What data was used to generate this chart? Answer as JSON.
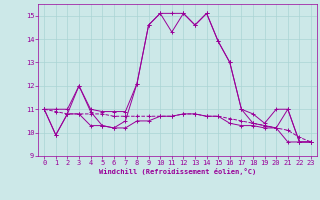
{
  "xlabel": "Windchill (Refroidissement éolien,°C)",
  "x": [
    0,
    1,
    2,
    3,
    4,
    5,
    6,
    7,
    8,
    9,
    10,
    11,
    12,
    13,
    14,
    15,
    16,
    17,
    18,
    19,
    20,
    21,
    22,
    23
  ],
  "y_main": [
    11.0,
    9.9,
    10.8,
    12.0,
    10.9,
    10.3,
    10.2,
    10.5,
    12.1,
    14.6,
    15.1,
    14.3,
    15.1,
    14.6,
    15.1,
    13.9,
    13.0,
    11.0,
    10.4,
    10.3,
    10.2,
    11.0,
    9.6,
    9.6
  ],
  "y_avg": [
    11.0,
    10.9,
    10.8,
    10.8,
    10.8,
    10.8,
    10.7,
    10.7,
    10.7,
    10.7,
    10.7,
    10.7,
    10.8,
    10.8,
    10.7,
    10.7,
    10.6,
    10.5,
    10.4,
    10.3,
    10.2,
    10.1,
    9.8,
    9.6
  ],
  "y_min": [
    11.0,
    9.9,
    10.8,
    10.8,
    10.3,
    10.3,
    10.2,
    10.2,
    10.5,
    10.5,
    10.7,
    10.7,
    10.8,
    10.8,
    10.7,
    10.7,
    10.4,
    10.3,
    10.3,
    10.2,
    10.2,
    9.6,
    9.6,
    9.6
  ],
  "y_max": [
    11.0,
    11.0,
    11.0,
    12.0,
    11.0,
    10.9,
    10.9,
    10.9,
    12.1,
    14.6,
    15.1,
    15.1,
    15.1,
    14.6,
    15.1,
    13.9,
    13.0,
    11.0,
    10.8,
    10.4,
    11.0,
    11.0,
    9.6,
    9.6
  ],
  "line_color": "#990099",
  "bg_color": "#cce8e8",
  "grid_color": "#aad4d4",
  "ylim": [
    9.0,
    15.5
  ],
  "xlim": [
    -0.5,
    23.5
  ],
  "yticks": [
    9,
    10,
    11,
    12,
    13,
    14,
    15
  ],
  "xticks": [
    0,
    1,
    2,
    3,
    4,
    5,
    6,
    7,
    8,
    9,
    10,
    11,
    12,
    13,
    14,
    15,
    16,
    17,
    18,
    19,
    20,
    21,
    22,
    23
  ],
  "lw": 0.7,
  "ms": 3.0
}
